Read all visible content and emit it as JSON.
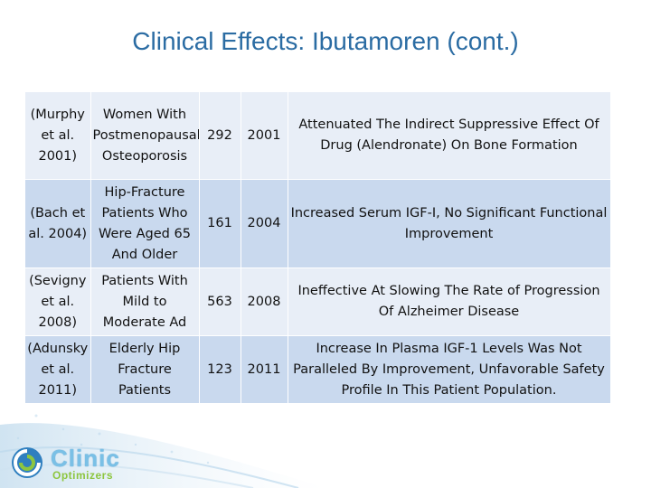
{
  "slide": {
    "title": "Clinical Effects: Ibutamoren (cont.)"
  },
  "table": {
    "rows": [
      {
        "study": "(Murphy et al. 2001)",
        "population": "Women With Postmenopausal Osteoporosis",
        "n": "292",
        "year": "2001",
        "finding": "Attenuated The Indirect Suppressive Effect Of Drug (Alendronate) On Bone Formation"
      },
      {
        "study": "(Bach et al. 2004)",
        "population": "Hip-Fracture Patients Who Were Aged 65 And Older",
        "n": "161",
        "year": "2004",
        "finding": "Increased Serum IGF-I, No Significant Functional Improvement"
      },
      {
        "study": "(Sevigny et al. 2008)",
        "population": "Patients With Mild to Moderate Ad",
        "n": "563",
        "year": "2008",
        "finding": "Ineffective At Slowing The Rate of Progression Of Alzheimer Disease"
      },
      {
        "study": "(Adunsky et al. 2011)",
        "population": "Elderly Hip Fracture Patients",
        "n": "123",
        "year": "2011",
        "finding": "Increase In Plasma IGF-1 Levels Was Not Paralleled By Improvement, Unfavorable Safety Profile In This Patient Population."
      }
    ]
  },
  "logo": {
    "name": "Clinic",
    "subtitle": "Optimizers",
    "icon": "swirl-logo-icon"
  },
  "colors": {
    "title": "#2b6ca3",
    "row_light": "#e8eef7",
    "row_dark": "#c9d9ee"
  }
}
